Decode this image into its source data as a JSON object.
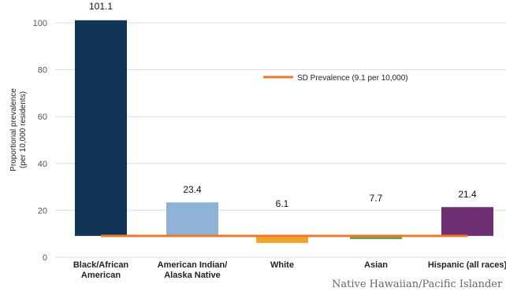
{
  "chart_data": {
    "type": "bar",
    "title": "",
    "ylabel_lines": [
      "Proportional prevalence",
      "(per 10,000 residents)"
    ],
    "xlabel": "",
    "ylim": [
      0,
      100
    ],
    "yticks": [
      "0",
      "20",
      "40",
      "60",
      "80",
      "100"
    ],
    "baseline_value": 9.1,
    "categories": [
      {
        "lines": [
          "Black/African",
          "American"
        ]
      },
      {
        "lines": [
          "American Indian/",
          "Alaska Native"
        ]
      },
      {
        "lines": [
          "White"
        ]
      },
      {
        "lines": [
          "Asian"
        ]
      },
      {
        "lines": [
          "Hispanic (all races)"
        ]
      }
    ],
    "values": [
      101.1,
      23.4,
      6.1,
      7.7,
      21.4
    ],
    "value_labels": [
      "101.1",
      "23.4",
      "6.1",
      "7.7",
      "21.4"
    ],
    "colors": [
      "#123456",
      "#8fb3d6",
      "#f0a52a",
      "#6e9e4e",
      "#6e2f72"
    ],
    "reference_line": {
      "value": 9.1,
      "label": "SD Prevalence (9.1 per 10,000)",
      "color": "#ec7a2e"
    },
    "footnote": "Native Hawaiian/Pacific Islander <"
  }
}
